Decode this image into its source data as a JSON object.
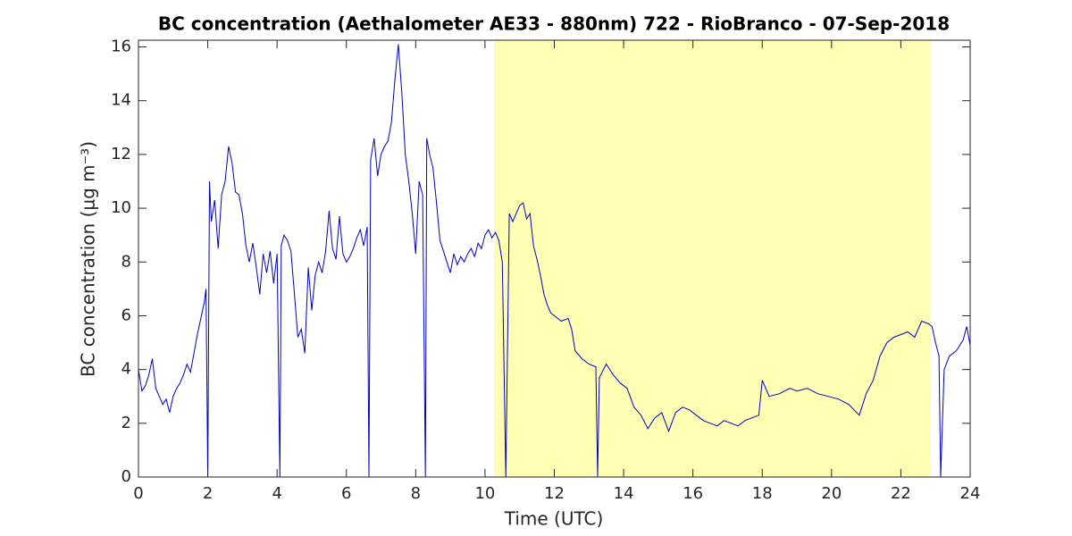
{
  "chart_data": {
    "type": "line",
    "title": "BC concentration (Aethalometer AE33 - 880nm) 722 - RioBranco - 07-Sep-2018",
    "x_label": "Time (UTC)",
    "y_label": "BC concentration (μg m⁻³)",
    "xlim": [
      0,
      24
    ],
    "xticks": [
      0,
      2,
      4,
      6,
      8,
      10,
      12,
      14,
      16,
      18,
      20,
      22,
      24
    ],
    "ylim": [
      0,
      16.25
    ],
    "yticks": [
      0,
      2,
      4,
      6,
      8,
      10,
      12,
      14,
      16
    ],
    "shaded_span": [
      10.26,
      22.84
    ],
    "shade_color": "#ffffb3",
    "grid": false,
    "series": [
      {
        "color": "#0000d0",
        "x": [
          0,
          0.1,
          0.2,
          0.3,
          0.4,
          0.5,
          0.6,
          0.7,
          0.8,
          0.9,
          1.0,
          1.1,
          1.2,
          1.3,
          1.4,
          1.5,
          1.6,
          1.7,
          1.8,
          1.9,
          1.95,
          2.0,
          2.05,
          2.1,
          2.2,
          2.3,
          2.4,
          2.5,
          2.6,
          2.7,
          2.8,
          2.9,
          3.0,
          3.1,
          3.2,
          3.3,
          3.4,
          3.5,
          3.6,
          3.7,
          3.8,
          3.9,
          4.0,
          4.08,
          4.12,
          4.2,
          4.3,
          4.4,
          4.5,
          4.6,
          4.7,
          4.8,
          4.9,
          5.0,
          5.1,
          5.2,
          5.3,
          5.4,
          5.5,
          5.6,
          5.7,
          5.8,
          5.9,
          6.0,
          6.1,
          6.2,
          6.3,
          6.4,
          6.5,
          6.6,
          6.65,
          6.7,
          6.8,
          6.9,
          7.0,
          7.1,
          7.2,
          7.3,
          7.4,
          7.5,
          7.6,
          7.7,
          7.8,
          7.9,
          8.0,
          8.1,
          8.2,
          8.28,
          8.32,
          8.4,
          8.5,
          8.6,
          8.7,
          8.8,
          8.9,
          9.0,
          9.1,
          9.2,
          9.3,
          9.4,
          9.5,
          9.6,
          9.7,
          9.8,
          9.9,
          10.0,
          10.1,
          10.2,
          10.3,
          10.4,
          10.5,
          10.6,
          10.7,
          10.8,
          10.9,
          11.0,
          11.1,
          11.2,
          11.3,
          11.4,
          11.5,
          11.6,
          11.7,
          11.8,
          11.9,
          12.0,
          12.2,
          12.4,
          12.5,
          12.6,
          12.8,
          13.0,
          13.2,
          13.25,
          13.3,
          13.5,
          13.7,
          13.9,
          14.1,
          14.3,
          14.5,
          14.7,
          14.9,
          15.1,
          15.3,
          15.5,
          15.7,
          15.9,
          16.1,
          16.3,
          16.5,
          16.7,
          16.9,
          17.1,
          17.3,
          17.5,
          17.7,
          17.9,
          18.0,
          18.2,
          18.5,
          18.8,
          19.0,
          19.3,
          19.6,
          19.9,
          20.2,
          20.5,
          20.8,
          21.0,
          21.2,
          21.4,
          21.6,
          21.8,
          22.0,
          22.2,
          22.4,
          22.6,
          22.8,
          22.9,
          23.0,
          23.1,
          23.15,
          23.25,
          23.4,
          23.6,
          23.8,
          23.9,
          24.0
        ],
        "values": [
          4.0,
          3.2,
          3.4,
          3.8,
          4.4,
          3.3,
          3.0,
          2.7,
          2.9,
          2.4,
          3.0,
          3.3,
          3.5,
          3.8,
          4.2,
          3.9,
          4.6,
          5.3,
          5.9,
          6.5,
          7.0,
          0,
          11.0,
          9.5,
          10.3,
          8.5,
          10.5,
          11.0,
          12.3,
          11.7,
          10.6,
          10.5,
          9.8,
          8.6,
          8.0,
          8.7,
          7.8,
          6.8,
          8.3,
          7.6,
          8.4,
          7.2,
          8.3,
          0,
          8.6,
          9.0,
          8.8,
          8.4,
          6.8,
          5.2,
          5.5,
          4.6,
          7.8,
          6.2,
          7.5,
          8.0,
          7.6,
          8.4,
          9.9,
          8.5,
          8.1,
          9.7,
          8.3,
          8.0,
          8.2,
          8.5,
          8.9,
          9.2,
          8.6,
          9.3,
          0,
          11.8,
          12.6,
          11.2,
          12.0,
          12.3,
          12.5,
          13.2,
          14.8,
          16.1,
          14.3,
          12.0,
          11.0,
          9.8,
          8.3,
          11.0,
          10.5,
          0,
          12.6,
          12.0,
          11.5,
          10.2,
          8.8,
          8.4,
          8.0,
          7.6,
          8.3,
          7.9,
          8.2,
          8.0,
          8.3,
          8.5,
          8.2,
          8.7,
          8.5,
          9.0,
          9.2,
          8.9,
          9.1,
          8.8,
          8.0,
          0,
          9.8,
          9.5,
          9.8,
          10.1,
          10.2,
          9.6,
          9.8,
          8.6,
          8.1,
          7.5,
          6.8,
          6.4,
          6.1,
          6.0,
          5.8,
          5.9,
          5.5,
          4.7,
          4.4,
          4.2,
          4.1,
          0,
          3.7,
          4.2,
          3.8,
          3.5,
          3.3,
          2.6,
          2.3,
          1.8,
          2.2,
          2.4,
          1.7,
          2.4,
          2.6,
          2.5,
          2.3,
          2.1,
          2.0,
          1.9,
          2.1,
          2.0,
          1.9,
          2.1,
          2.2,
          2.3,
          3.6,
          3.0,
          3.1,
          3.3,
          3.2,
          3.3,
          3.1,
          3.0,
          2.9,
          2.7,
          2.3,
          3.1,
          3.6,
          4.5,
          5.0,
          5.2,
          5.3,
          5.4,
          5.2,
          5.8,
          5.7,
          5.6,
          5.0,
          4.5,
          0,
          4.0,
          4.5,
          4.7,
          5.1,
          5.6,
          4.9
        ]
      }
    ]
  }
}
